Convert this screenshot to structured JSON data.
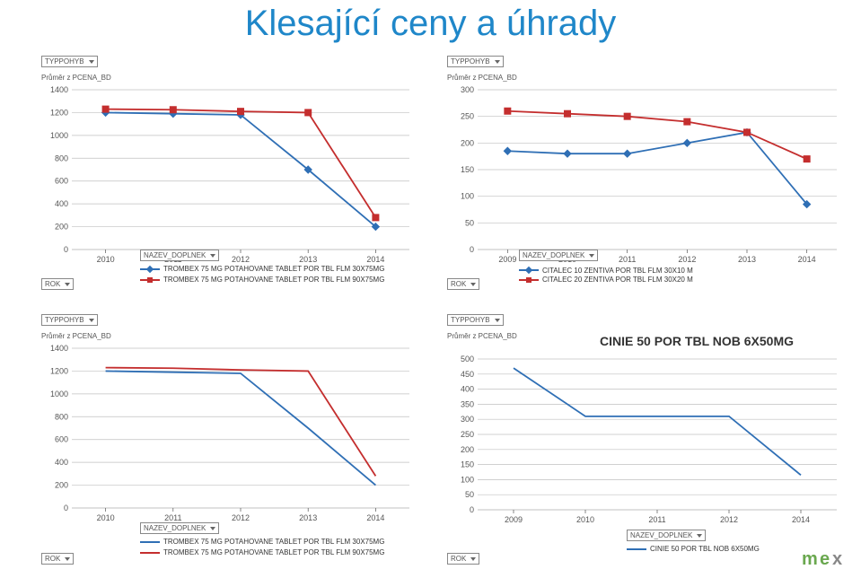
{
  "page_title": "Klesající ceny a úhrady",
  "common": {
    "typpohyb_label": "TYPPOHYB",
    "yaxis_title": "Průměr z PCENA_BD",
    "nazev_label": "NAZEV_DOPLNEK",
    "rok_label": "ROK"
  },
  "colors": {
    "title": "#1f87c9",
    "blue_line": "#2f6fb5",
    "red_line": "#c42e2e",
    "blue_marker_fill": "#2f6fb5",
    "red_marker_fill": "#c42e2e",
    "grid": "#c0c0c0",
    "axis_text": "#555555",
    "logo_green": "#6aa84f",
    "logo_gray": "#888888",
    "background": "#ffffff"
  },
  "chart_tl": {
    "type": "line",
    "x_categories": [
      "2010",
      "2011",
      "2012",
      "2013",
      "2014"
    ],
    "y_ticks": [
      0,
      200,
      400,
      600,
      800,
      1000,
      1200,
      1400
    ],
    "ylim": [
      0,
      1400
    ],
    "series": [
      {
        "name": "TROMBEX 75 MG POTAHOVANE TABLET POR TBL FLM 30X75MG",
        "color_key": "blue_line",
        "marker": "diamond",
        "values": [
          1200,
          1190,
          1180,
          700,
          200
        ]
      },
      {
        "name": "TROMBEX 75 MG POTAHOVANE TABLET POR TBL FLM 90X75MG",
        "color_key": "red_line",
        "marker": "square",
        "values": [
          1230,
          1225,
          1210,
          1200,
          280
        ]
      }
    ]
  },
  "chart_tr": {
    "type": "line",
    "x_categories": [
      "2009",
      "2010",
      "2011",
      "2012",
      "2013",
      "2014"
    ],
    "y_ticks": [
      0,
      50,
      100,
      150,
      200,
      250,
      300
    ],
    "ylim": [
      0,
      300
    ],
    "series": [
      {
        "name": "CITALEC 10 ZENTIVA POR TBL FLM 30X10 M",
        "color_key": "blue_line",
        "marker": "diamond",
        "values": [
          185,
          180,
          180,
          200,
          220,
          85
        ]
      },
      {
        "name": "CITALEC 20 ZENTIVA POR TBL FLM 30X20 M",
        "color_key": "red_line",
        "marker": "square",
        "values": [
          260,
          255,
          250,
          240,
          220,
          170
        ]
      }
    ]
  },
  "chart_bl": {
    "type": "line",
    "x_categories": [
      "2010",
      "2011",
      "2012",
      "2013",
      "2014"
    ],
    "y_ticks": [
      0,
      200,
      400,
      600,
      800,
      1000,
      1200,
      1400
    ],
    "ylim": [
      0,
      1400
    ],
    "series": [
      {
        "name": "TROMBEX 75 MG POTAHOVANE TABLET POR TBL FLM 30X75MG",
        "color_key": "blue_line",
        "marker": "none",
        "values": [
          1200,
          1190,
          1180,
          700,
          200
        ]
      },
      {
        "name": "TROMBEX 75 MG POTAHOVANE TABLET POR TBL FLM 90X75MG",
        "color_key": "red_line",
        "marker": "none",
        "values": [
          1230,
          1225,
          1210,
          1200,
          280
        ]
      }
    ]
  },
  "chart_br": {
    "type": "line",
    "title": "CINIE 50 POR TBL NOB 6X50MG",
    "x_categories": [
      "2009",
      "2010",
      "2011",
      "2012",
      "2014"
    ],
    "y_ticks": [
      0,
      50,
      100,
      150,
      200,
      250,
      300,
      350,
      400,
      450,
      500
    ],
    "ylim": [
      0,
      500
    ],
    "series": [
      {
        "name": "CINIE 50 POR TBL NOB 6X50MG",
        "color_key": "blue_line",
        "marker": "none",
        "values": [
          470,
          310,
          310,
          310,
          115
        ]
      }
    ]
  },
  "logo_text": "mex"
}
